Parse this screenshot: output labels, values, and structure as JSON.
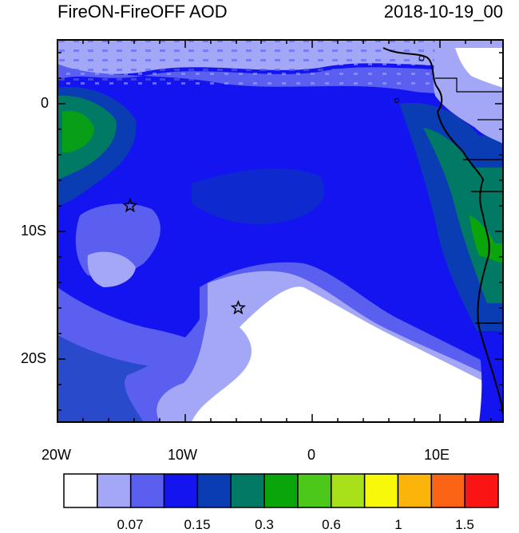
{
  "header": {
    "title_left": "FireON-FireOFF AOD",
    "title_right": "2018-10-19_00"
  },
  "axes": {
    "x_ticks": [
      "20W",
      "10W",
      "0",
      "10E"
    ],
    "y_ticks": [
      "0",
      "10S",
      "20S"
    ]
  },
  "colorbar": {
    "colors": [
      "#ffffff",
      "#a3a7f5",
      "#5a5ff0",
      "#1414f0",
      "#0a3cb4",
      "#007a64",
      "#0aa50a",
      "#4cc81a",
      "#a8e01a",
      "#f8f80a",
      "#fab40a",
      "#fa6414",
      "#fa1414"
    ],
    "labels": [
      "0.07",
      "0.15",
      "0.3",
      "0.6",
      "1",
      "1.5"
    ]
  },
  "markers": [
    {
      "name": "star-1",
      "lon": -14.3,
      "lat": -8
    },
    {
      "name": "star-2",
      "lon": -5.8,
      "lat": -16
    }
  ]
}
